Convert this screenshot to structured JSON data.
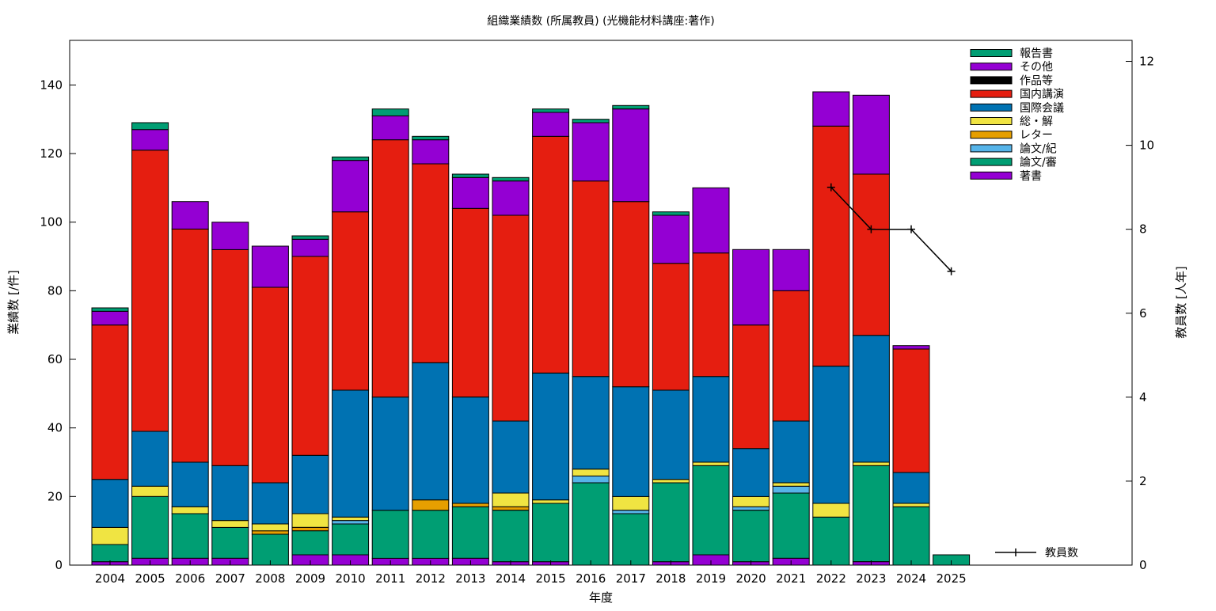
{
  "chart_data": {
    "type": "bar",
    "stacked": true,
    "title": "組織業績数 (所属教員) (光機能材料講座:著作)",
    "xlabel": "年度",
    "ylabel": "業績数 [/件]",
    "y2label": "教員数 [人年]",
    "ylim": [
      0,
      153
    ],
    "y2lim": [
      0,
      12.5
    ],
    "yticks": [
      0,
      20,
      40,
      60,
      80,
      100,
      120,
      140
    ],
    "y2ticks": [
      0,
      2,
      4,
      6,
      8,
      10,
      12
    ],
    "grid": false,
    "legend_position": "top-right",
    "categories": [
      "2004",
      "2005",
      "2006",
      "2007",
      "2008",
      "2009",
      "2010",
      "2011",
      "2012",
      "2013",
      "2014",
      "2015",
      "2016",
      "2017",
      "2018",
      "2019",
      "2020",
      "2021",
      "2022",
      "2023",
      "2024",
      "2025"
    ],
    "series": [
      {
        "name": "著書",
        "color": "#9400d3",
        "values": [
          1,
          2,
          2,
          2,
          0,
          3,
          3,
          2,
          2,
          2,
          1,
          1,
          0,
          0,
          1,
          3,
          1,
          2,
          0,
          1,
          0,
          0
        ]
      },
      {
        "name": "論文/審",
        "color": "#009e73",
        "values": [
          5,
          18,
          13,
          9,
          9,
          7,
          9,
          14,
          14,
          15,
          15,
          17,
          24,
          15,
          23,
          26,
          15,
          19,
          14,
          28,
          17,
          3
        ]
      },
      {
        "name": "論文/紀",
        "color": "#56b4e9",
        "values": [
          0,
          0,
          0,
          0,
          0,
          0,
          1,
          0,
          0,
          0,
          0,
          0,
          2,
          1,
          0,
          0,
          1,
          2,
          0,
          0,
          0,
          0
        ]
      },
      {
        "name": "レター",
        "color": "#e69f00",
        "values": [
          0,
          0,
          0,
          0,
          1,
          1,
          0,
          0,
          3,
          1,
          1,
          0,
          0,
          0,
          0,
          0,
          0,
          0,
          0,
          0,
          0,
          0
        ]
      },
      {
        "name": "総・解",
        "color": "#f0e442",
        "values": [
          5,
          3,
          2,
          2,
          2,
          4,
          1,
          0,
          0,
          0,
          4,
          1,
          2,
          4,
          1,
          1,
          3,
          1,
          4,
          1,
          1,
          0
        ]
      },
      {
        "name": "国際会議",
        "color": "#0072b2",
        "values": [
          14,
          16,
          13,
          16,
          12,
          17,
          37,
          33,
          40,
          31,
          21,
          37,
          27,
          32,
          26,
          25,
          14,
          18,
          40,
          37,
          9,
          0
        ]
      },
      {
        "name": "国内講演",
        "color": "#e51e10",
        "values": [
          45,
          82,
          68,
          63,
          57,
          58,
          52,
          75,
          58,
          55,
          60,
          69,
          57,
          54,
          37,
          36,
          36,
          38,
          70,
          47,
          36,
          0
        ]
      },
      {
        "name": "作品等",
        "color": "#000000",
        "values": [
          0,
          0,
          0,
          0,
          0,
          0,
          0,
          0,
          0,
          0,
          0,
          0,
          0,
          0,
          0,
          0,
          0,
          0,
          0,
          0,
          0,
          0
        ]
      },
      {
        "name": "その他",
        "color": "#9400d3",
        "values": [
          4,
          6,
          8,
          8,
          12,
          5,
          15,
          7,
          7,
          9,
          10,
          7,
          17,
          27,
          14,
          19,
          22,
          12,
          10,
          23,
          1,
          0
        ]
      },
      {
        "name": "報告書",
        "color": "#009e73",
        "values": [
          1,
          2,
          0,
          0,
          0,
          1,
          1,
          2,
          1,
          1,
          1,
          1,
          1,
          1,
          1,
          0,
          0,
          0,
          0,
          0,
          0,
          0
        ]
      }
    ],
    "line_series": {
      "name": "教員数",
      "axis": "y2",
      "x": [
        "2022",
        "2023",
        "2024",
        "2025"
      ],
      "values": [
        9,
        8,
        8,
        7
      ]
    },
    "legend_order": [
      "報告書",
      "その他",
      "作品等",
      "国内講演",
      "国際会議",
      "総・解",
      "レター",
      "論文/紀",
      "論文/審",
      "著書"
    ]
  }
}
